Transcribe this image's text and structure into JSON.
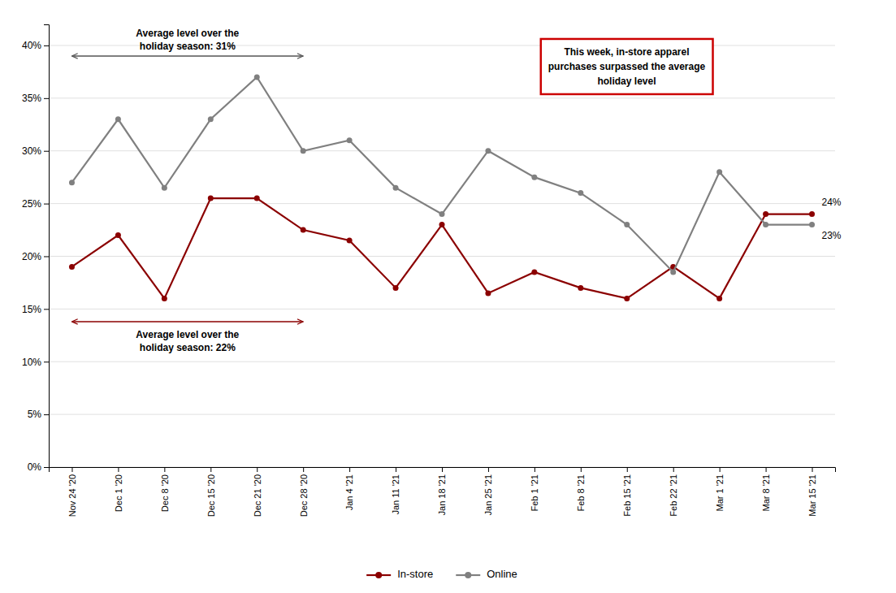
{
  "chart_data": {
    "type": "line",
    "categories": [
      "Nov 24 '20",
      "Dec 1 '20",
      "Dec 8 '20",
      "Dec 15 '20",
      "Dec 21 '20",
      "Dec 28 '20",
      "Jan 4 '21",
      "Jan 11 '21",
      "Jan 18 '21",
      "Jan 25 '21",
      "Feb 1 '21",
      "Feb 8 '21",
      "Feb 15 '21",
      "Feb 22 '21",
      "Mar 1 '21",
      "Mar 8 '21",
      "Mar 15 '21"
    ],
    "series": [
      {
        "name": "In-store",
        "color": "#8B0000",
        "marker": "circle",
        "values": [
          19,
          22,
          16,
          25.5,
          25.5,
          22.5,
          21.5,
          17,
          23,
          16.5,
          18.5,
          17,
          16,
          19,
          16,
          24,
          24
        ],
        "value_labels": [
          null,
          null,
          null,
          null,
          null,
          null,
          null,
          null,
          null,
          null,
          null,
          null,
          null,
          null,
          null,
          null,
          "24%"
        ]
      },
      {
        "name": "Online",
        "color": "#808080",
        "marker": "circle",
        "values": [
          27,
          33,
          26.5,
          33,
          37,
          30,
          31,
          26.5,
          24,
          30,
          27.5,
          26,
          23,
          18.5,
          28,
          23,
          23
        ],
        "value_labels": [
          null,
          null,
          null,
          null,
          null,
          null,
          null,
          null,
          null,
          null,
          null,
          null,
          null,
          null,
          null,
          null,
          "23%"
        ]
      }
    ],
    "ylim": [
      0,
      42
    ],
    "yticks": [
      {
        "value": 0,
        "label": "0%"
      },
      {
        "value": 5,
        "label": "5%"
      },
      {
        "value": 10,
        "label": "10%"
      },
      {
        "value": 15,
        "label": "15%"
      },
      {
        "value": 20,
        "label": "20%"
      },
      {
        "value": 25,
        "label": "25%"
      },
      {
        "value": 30,
        "label": "30%"
      },
      {
        "value": 35,
        "label": "35%"
      },
      {
        "value": 40,
        "label": "40%"
      }
    ],
    "grid": true,
    "legend": "bottom",
    "annotations": [
      {
        "text": "This week, in-store apparel\npurchases surpassed the average\nholiday level",
        "color": "#CC0000"
      },
      {
        "text": "Average level over the\nholiday season: 31%",
        "y": 39.0,
        "x_start": "Nov 24 '20",
        "x_end": "Dec 28 '20",
        "color": "#555555"
      },
      {
        "text": "Average level over the\nholiday season: 22%",
        "y": 13.8,
        "x_start": "Nov 24 '20",
        "x_end": "Dec 28 '20",
        "color": "#8B0000"
      }
    ]
  }
}
